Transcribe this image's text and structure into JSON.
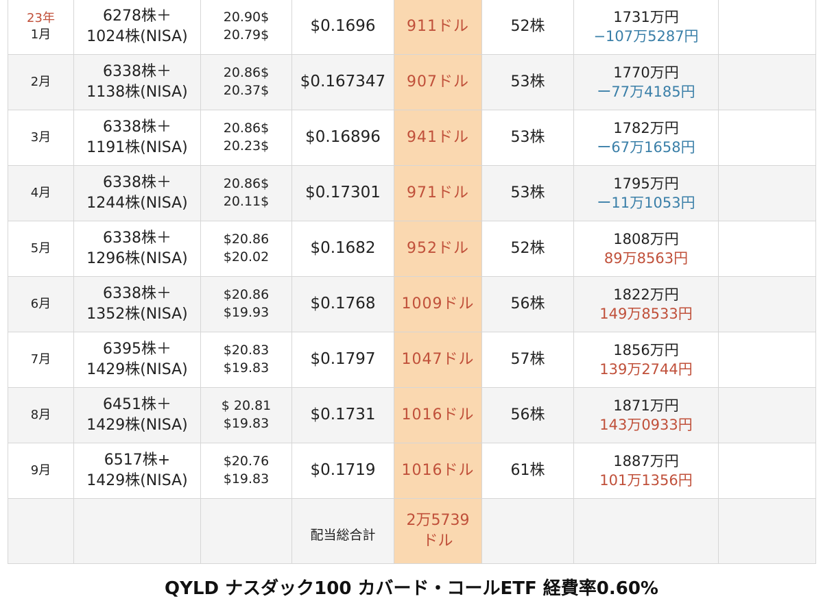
{
  "rows": [
    {
      "month": "1月",
      "year": "23年",
      "shares": [
        "6278株＋",
        "1024株(NISA)"
      ],
      "prices": [
        "20.90$",
        "20.79$"
      ],
      "div_per_share": "$0.1696",
      "div_total": "911ドル",
      "buy": "52株",
      "valuation": "1731万円",
      "pl": "−107万5287円",
      "pl_sign": "neg"
    },
    {
      "month": "2月",
      "year": "",
      "shares": [
        "6338株＋",
        "1138株(NISA)"
      ],
      "prices": [
        "20.86$",
        "20.37$"
      ],
      "div_per_share": "$0.167347",
      "div_total": "907ドル",
      "buy": "53株",
      "valuation": "1770万円",
      "pl": "ー77万4185円",
      "pl_sign": "neg"
    },
    {
      "month": "3月",
      "year": "",
      "shares": [
        "6338株＋",
        "1191株(NISA)"
      ],
      "prices": [
        "20.86$",
        "20.23$"
      ],
      "div_per_share": "$0.16896",
      "div_total": "941ドル",
      "buy": "53株",
      "valuation": "1782万円",
      "pl": "ー67万1658円",
      "pl_sign": "neg"
    },
    {
      "month": "4月",
      "year": "",
      "shares": [
        "6338株＋",
        "1244株(NISA)"
      ],
      "prices": [
        "20.86$",
        "20.11$"
      ],
      "div_per_share": "$0.17301",
      "div_total": "971ドル",
      "buy": "53株",
      "valuation": "1795万円",
      "pl": "ー11万1053円",
      "pl_sign": "neg"
    },
    {
      "month": "5月",
      "year": "",
      "shares": [
        "6338株＋",
        "1296株(NISA)"
      ],
      "prices": [
        "$20.86",
        "$20.02"
      ],
      "div_per_share": "$0.1682",
      "div_total": "952ドル",
      "buy": "52株",
      "valuation": "1808万円",
      "pl": "89万8563円",
      "pl_sign": "pos"
    },
    {
      "month": "6月",
      "year": "",
      "shares": [
        "6338株＋",
        "1352株(NISA)"
      ],
      "prices": [
        "$20.86",
        "$19.93"
      ],
      "div_per_share": "$0.1768",
      "div_total": "1009ドル",
      "buy": "56株",
      "valuation": "1822万円",
      "pl": "149万8533円",
      "pl_sign": "pos"
    },
    {
      "month": "7月",
      "year": "",
      "shares": [
        "6395株＋",
        "1429株(NISA)"
      ],
      "prices": [
        "$20.83",
        "$19.83"
      ],
      "div_per_share": "$0.1797",
      "div_total": "1047ドル",
      "buy": "57株",
      "valuation": "1856万円",
      "pl": "139万2744円",
      "pl_sign": "pos"
    },
    {
      "month": "8月",
      "year": "",
      "shares": [
        "6451株＋",
        "1429株(NISA)"
      ],
      "prices": [
        "$ 20.81",
        "$19.83"
      ],
      "div_per_share": "$0.1731",
      "div_total": "1016ドル",
      "buy": "56株",
      "valuation": "1871万円",
      "pl": "143万0933円",
      "pl_sign": "pos"
    },
    {
      "month": "9月",
      "year": "",
      "shares": [
        "6517株+",
        "1429株(NISA)"
      ],
      "prices": [
        "$20.76",
        "$19.83"
      ],
      "div_per_share": "$0.1719",
      "div_total": "1016ドル",
      "buy": "61株",
      "valuation": "1887万円",
      "pl": "101万1356円",
      "pl_sign": "pos"
    }
  ],
  "total": {
    "label": "配当総合計",
    "value_line1": "2万5739",
    "value_line2": "ドル"
  },
  "caption": "QYLD ナスダック100 カバード・コールETF  経費率0.60%",
  "colors": {
    "highlight": "#fad8b0",
    "positive": "#c0503a",
    "negative": "#3a7fa8",
    "row_alt": "#f4f4f4",
    "border": "#d6d6d6"
  }
}
